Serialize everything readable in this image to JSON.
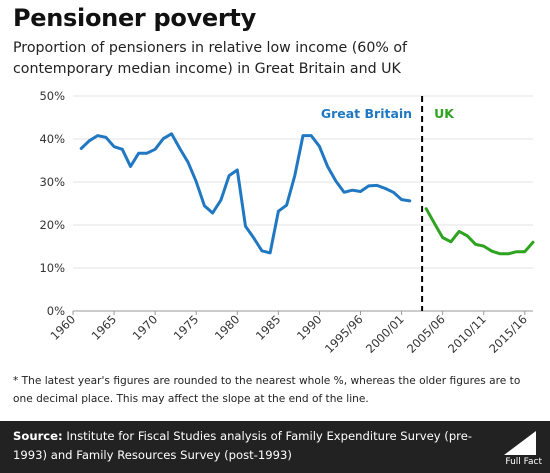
{
  "title": "Pensioner poverty",
  "subtitle": "Proportion of pensioners in relative low income (60% of contemporary median income) in Great Britain and UK",
  "footnote": "* The latest year's figures are rounded to the nearest whole %, whereas the older figures are to one decimal place. This may affect the slope at the end of the line.",
  "source": {
    "label": "Source:",
    "text": " Institute for Fiscal Studies analysis of Family Expenditure Survey (pre-1993) and Family Resources Survey (post-1993)"
  },
  "brand": "Full Fact",
  "colors": {
    "gb": "#1f78c1",
    "uk": "#2ea31f",
    "divider": "#000000",
    "grid": "#e3e3e3"
  },
  "chart_data": {
    "type": "line",
    "y_ticks": [
      "0%",
      "10%",
      "20%",
      "30%",
      "40%",
      "50%"
    ],
    "ylim": [
      0,
      50
    ],
    "x_tick_labels": [
      {
        "label": "1960",
        "i": 0
      },
      {
        "label": "1965",
        "i": 5
      },
      {
        "label": "1970",
        "i": 10
      },
      {
        "label": "1975",
        "i": 15
      },
      {
        "label": "1980",
        "i": 20
      },
      {
        "label": "1985",
        "i": 25
      },
      {
        "label": "1990",
        "i": 30
      },
      {
        "label": "1995/96",
        "i": 35
      },
      {
        "label": "2000/01",
        "i": 40
      },
      {
        "label": "2005/06",
        "i": 45
      },
      {
        "label": "2010/11",
        "i": 50
      },
      {
        "label": "2015/16",
        "i": 55
      }
    ],
    "divider_at": 42.5,
    "series": [
      {
        "name": "Great Britain",
        "color": "#1f78c1",
        "start": 1,
        "values": [
          37.8,
          39.6,
          40.8,
          40.4,
          38.2,
          37.6,
          33.6,
          36.7,
          36.7,
          37.6,
          40.1,
          41.2,
          37.8,
          34.6,
          30.1,
          24.5,
          22.8,
          25.8,
          31.5,
          32.8,
          19.7,
          17.0,
          14.0,
          13.5,
          23.2,
          24.6,
          31.5,
          40.8,
          40.8,
          38.3,
          33.6,
          30.2,
          27.6,
          28.1,
          27.8,
          29.1,
          29.2,
          28.5,
          27.6,
          25.9,
          25.6
        ]
      },
      {
        "name": "UK",
        "color": "#2ea31f",
        "start": 43,
        "values": [
          23.8,
          20.4,
          17.1,
          16.1,
          18.5,
          17.5,
          15.5,
          15.1,
          13.9,
          13.3,
          13.3,
          13.8,
          13.8,
          16.0
        ]
      }
    ]
  }
}
